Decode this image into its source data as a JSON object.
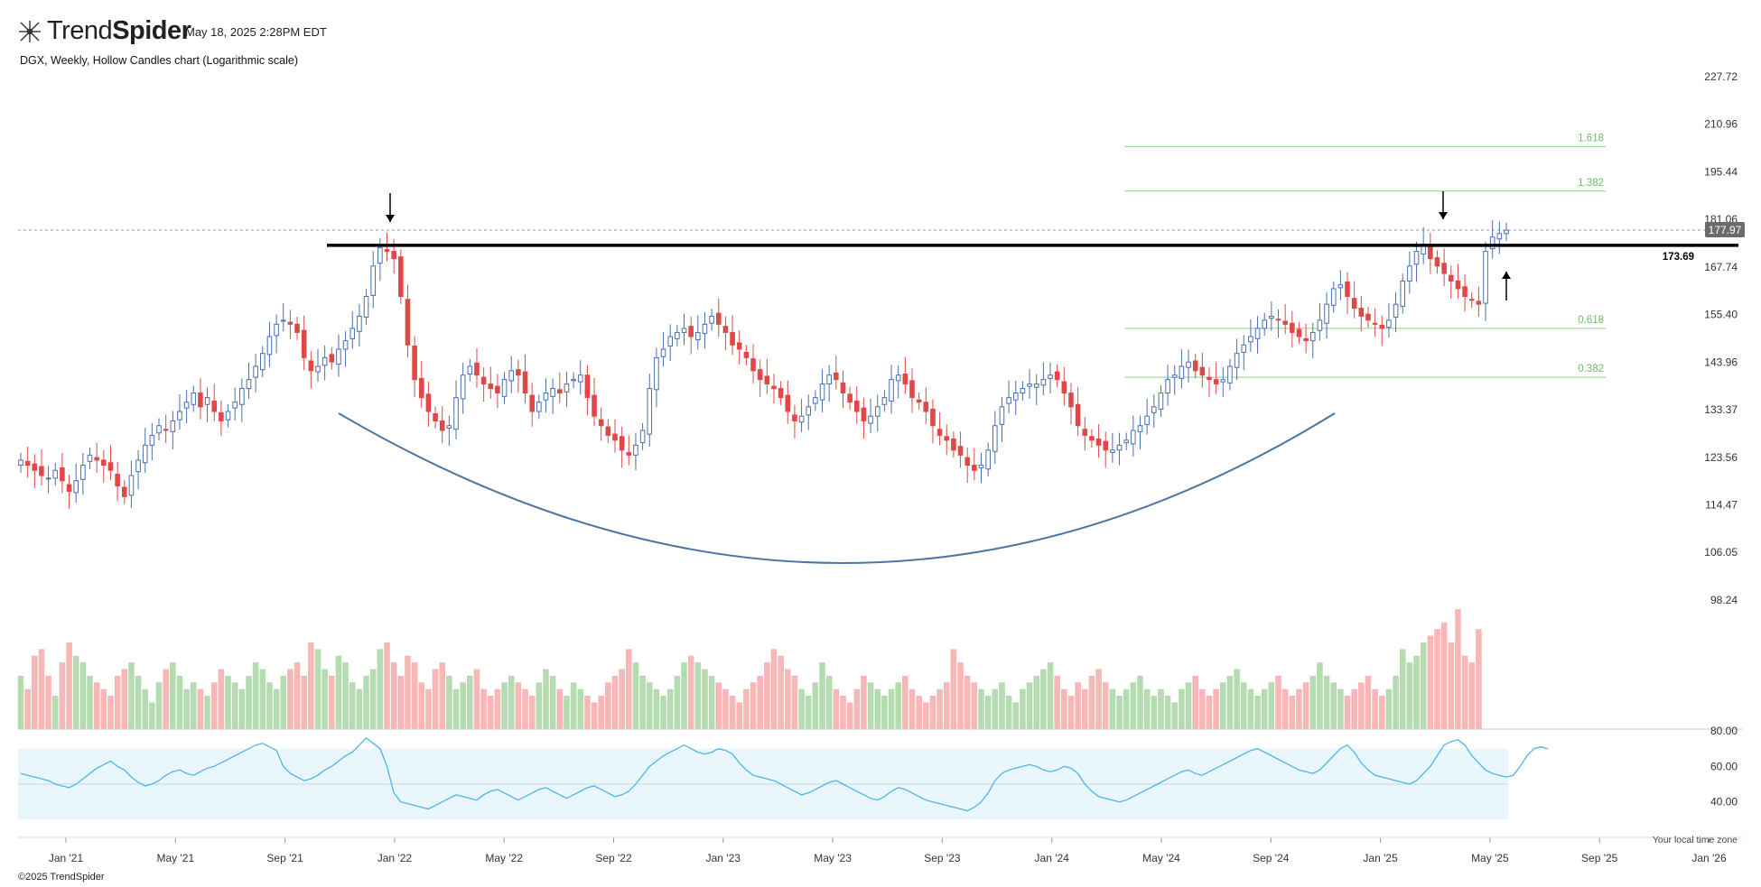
{
  "header": {
    "logo_text_a": "Trend",
    "logo_text_b": "Spider",
    "timestamp": "May 18, 2025 2:28PM EDT",
    "subtitle": "DGX, Weekly, Hollow Candles chart (Logarithmic scale)"
  },
  "footer": {
    "copyright": "©2025 TrendSpider",
    "timezone_note": "Your local time zone"
  },
  "colors": {
    "up": "#4a6fb0",
    "down": "#e04848",
    "vol_up": "#b5dcb0",
    "vol_down": "#f7b7b7",
    "rsi_line": "#4bb6e8",
    "rsi_band": "#e9f6fb",
    "fib": "#8fd08b",
    "resistance": "#000000",
    "bowl": "#4b76a4"
  },
  "chart_data": {
    "type": "candlestick",
    "symbol": "DGX",
    "interval": "Weekly",
    "style": "Hollow Candles",
    "scale": "log",
    "x_tick_labels": [
      "Jan '21",
      "May '21",
      "Sep '21",
      "Jan '22",
      "May '22",
      "Sep '22",
      "Jan '23",
      "May '23",
      "Sep '23",
      "Jan '24",
      "May '24",
      "Sep '24",
      "Jan '25",
      "May '25",
      "Sep '25",
      "Jan '26"
    ],
    "y_tick_labels": [
      "227.72",
      "210.96",
      "195.44",
      "181.06",
      "167.74",
      "155.40",
      "143.96",
      "133.37",
      "123.56",
      "114.47",
      "106.05",
      "98.24"
    ],
    "ylim": [
      98.24,
      227.72
    ],
    "last_price": "177.97",
    "resistance_level": "173.69",
    "fib_levels": [
      {
        "label": "1.618",
        "value": 203.5
      },
      {
        "label": "1.382",
        "value": 189.5
      },
      {
        "label": "0.618",
        "value": 152.0
      },
      {
        "label": "0.382",
        "value": 140.5
      }
    ],
    "price_series": [
      123,
      122,
      121,
      120,
      119.5,
      121,
      119,
      117,
      119,
      122,
      124,
      123,
      122,
      121,
      118,
      116,
      120,
      123,
      126,
      128,
      130,
      129,
      131,
      133,
      135,
      137,
      134,
      136,
      133,
      131,
      133,
      135,
      138,
      140,
      143,
      146,
      150,
      153,
      154,
      153,
      151,
      145,
      142,
      143,
      145,
      144,
      147,
      149,
      152,
      155,
      160,
      168,
      173,
      172,
      170,
      160,
      148,
      140,
      136,
      133,
      131,
      129,
      130,
      136,
      141,
      143,
      141,
      139,
      138,
      137,
      140,
      142,
      141,
      137,
      133,
      135,
      137,
      138,
      137,
      139,
      140,
      141,
      136,
      132,
      130,
      128,
      127,
      125,
      124,
      126,
      129,
      138,
      145,
      147,
      150,
      151,
      152,
      150,
      151,
      153,
      155,
      153,
      151,
      148,
      147,
      145,
      142,
      140,
      139,
      138,
      136,
      133,
      131,
      132,
      134,
      136,
      139,
      141,
      140,
      137,
      135,
      133,
      131,
      132,
      134,
      136,
      140,
      141,
      139,
      136,
      135,
      133,
      130,
      128,
      127,
      125,
      124,
      122,
      121,
      122,
      125,
      130,
      134,
      136,
      137,
      138,
      139,
      139,
      140,
      141,
      140,
      137,
      134,
      130,
      128,
      127,
      126,
      125,
      125,
      126,
      127,
      129,
      130,
      132,
      134,
      137,
      140,
      141,
      143,
      144,
      142,
      141,
      140,
      139,
      140,
      143,
      146,
      148,
      150,
      152,
      154,
      155,
      154,
      153,
      151,
      150,
      149,
      151,
      154,
      158,
      162,
      163,
      160,
      157,
      155,
      154,
      153,
      152,
      154,
      158,
      164,
      168,
      172,
      174,
      170,
      168,
      166,
      164,
      162,
      160,
      159,
      158,
      172,
      176,
      177,
      177.97
    ],
    "price_range_weeks": [
      0,
      229
    ],
    "volume_series": [
      88,
      86,
      91,
      92,
      88,
      85,
      90,
      93,
      91,
      90,
      88,
      87,
      86,
      85,
      88,
      89,
      90,
      88,
      86,
      84,
      87,
      89,
      90,
      88,
      86,
      87,
      86,
      85,
      87,
      89,
      88,
      87,
      86,
      88,
      90,
      89,
      87,
      86,
      88,
      89,
      90,
      88,
      93,
      92,
      89,
      88,
      91,
      90,
      87,
      86,
      88,
      89,
      92,
      93,
      90,
      88,
      91,
      90,
      87,
      86,
      89,
      90,
      88,
      86,
      87,
      88,
      89,
      86,
      85,
      86,
      87,
      88,
      87,
      86,
      85,
      87,
      89,
      88,
      86,
      85,
      87,
      86,
      85,
      84,
      85,
      87,
      88,
      89,
      92,
      90,
      88,
      87,
      86,
      85,
      86,
      88,
      90,
      91,
      90,
      89,
      88,
      87,
      86,
      85,
      84,
      86,
      87,
      88,
      90,
      92,
      91,
      89,
      88,
      86,
      85,
      87,
      90,
      88,
      86,
      85,
      84,
      86,
      88,
      87,
      86,
      85,
      86,
      87,
      88,
      86,
      85,
      84,
      85,
      86,
      87,
      92,
      90,
      88,
      87,
      86,
      85,
      86,
      87,
      85,
      84,
      86,
      87,
      88,
      89,
      90,
      88,
      86,
      85,
      87,
      86,
      88,
      89,
      87,
      86,
      85,
      86,
      87,
      88,
      86,
      85,
      86,
      85,
      84,
      86,
      87,
      88,
      86,
      85,
      86,
      87,
      88,
      89,
      87,
      86,
      85,
      86,
      87,
      88,
      86,
      85,
      86,
      87,
      88,
      90,
      88,
      87,
      86,
      85,
      86,
      87,
      88,
      86,
      85,
      86,
      88,
      92,
      90,
      91,
      93,
      94,
      95,
      96,
      93,
      98,
      91,
      90,
      95
    ],
    "rsi": {
      "y_tick_labels": [
        "80.00",
        "60.00",
        "40.00"
      ],
      "ylim": [
        20,
        80
      ],
      "band": [
        30,
        70
      ],
      "values": [
        56,
        55,
        54,
        53,
        52,
        50,
        49,
        48,
        50,
        53,
        56,
        59,
        61,
        63,
        60,
        58,
        54,
        51,
        49,
        50,
        52,
        55,
        57,
        58,
        56,
        55,
        57,
        59,
        60,
        62,
        64,
        66,
        68,
        70,
        72,
        73,
        71,
        69,
        60,
        56,
        54,
        52,
        53,
        55,
        58,
        60,
        63,
        66,
        68,
        72,
        76,
        73,
        70,
        60,
        45,
        40,
        39,
        38,
        37,
        36,
        38,
        40,
        42,
        44,
        43,
        42,
        41,
        44,
        46,
        47,
        45,
        43,
        41,
        43,
        45,
        47,
        48,
        46,
        44,
        42,
        44,
        46,
        48,
        49,
        47,
        45,
        43,
        44,
        46,
        50,
        55,
        60,
        63,
        66,
        68,
        70,
        72,
        70,
        68,
        67,
        68,
        70,
        69,
        67,
        62,
        58,
        55,
        54,
        53,
        52,
        50,
        48,
        46,
        44,
        45,
        47,
        49,
        51,
        52,
        50,
        48,
        46,
        44,
        42,
        41,
        43,
        46,
        48,
        47,
        45,
        43,
        41,
        40,
        39,
        38,
        37,
        36,
        35,
        37,
        40,
        45,
        52,
        56,
        58,
        59,
        60,
        61,
        60,
        58,
        57,
        58,
        60,
        59,
        56,
        50,
        46,
        43,
        42,
        41,
        40,
        41,
        43,
        45,
        47,
        49,
        51,
        53,
        55,
        57,
        58,
        56,
        55,
        57,
        59,
        61,
        63,
        65,
        67,
        69,
        70,
        68,
        66,
        64,
        62,
        60,
        58,
        57,
        56,
        58,
        62,
        66,
        70,
        72,
        68,
        62,
        58,
        55,
        54,
        53,
        52,
        51,
        50,
        52,
        56,
        60,
        66,
        72,
        74,
        75,
        72,
        66,
        62,
        58,
        56,
        55,
        54,
        55,
        60,
        66,
        70,
        71,
        70
      ]
    }
  }
}
